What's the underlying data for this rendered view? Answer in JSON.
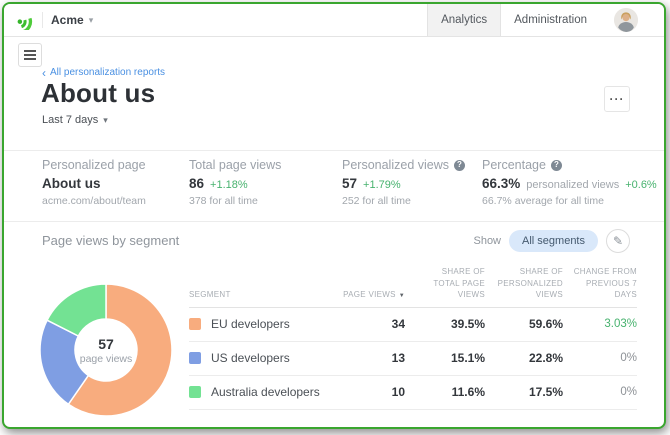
{
  "topbar": {
    "org_name": "Acme",
    "tabs": [
      {
        "label": "Analytics",
        "active": true
      },
      {
        "label": "Administration",
        "active": false
      }
    ]
  },
  "page": {
    "breadcrumb": "All personalization reports",
    "title": "About us",
    "date_range": "Last 7 days"
  },
  "icons": {
    "caret_down": "▾",
    "back_chevron": "‹",
    "ellipsis": "···",
    "help": "?",
    "pencil": "✎",
    "sort_desc": "▼"
  },
  "stats": [
    {
      "label": "Personalized page",
      "value": "About us",
      "sub": "acme.com/about/team"
    },
    {
      "label": "Total page views",
      "value": "86",
      "delta": "+1.18%",
      "sub": "378 for all time"
    },
    {
      "label": "Personalized views",
      "value": "57",
      "delta": "+1.79%",
      "sub": "252 for all time"
    },
    {
      "label": "Percentage",
      "value": "66.3%",
      "suffix": "personalized views",
      "delta": "+0.6%",
      "sub": "66.7% average for all time"
    }
  ],
  "segment_section": {
    "title": "Page views by segment",
    "show_label": "Show",
    "filter_value": "All segments"
  },
  "table": {
    "headers": [
      {
        "lines": [
          "SEGMENT"
        ],
        "align": "left"
      },
      {
        "lines": [
          "PAGE VIEWS"
        ],
        "sort": true
      },
      {
        "lines": [
          "SHARE OF",
          "TOTAL PAGE VIEWS"
        ]
      },
      {
        "lines": [
          "SHARE OF",
          "PERSONALIZED VIEWS"
        ]
      },
      {
        "lines": [
          "CHANGE FROM",
          "PREVIOUS 7 DAYS"
        ]
      }
    ]
  },
  "chart_data": {
    "type": "pie",
    "title": "Page views by segment",
    "center_value": "57",
    "center_label": "page views",
    "total_page_views": 57,
    "series": [
      {
        "name": "EU developers",
        "value": 34,
        "share_total": "39.5%",
        "share_personalized": "59.6%",
        "change": "3.03%",
        "change_positive": true,
        "color": "#f8ac7e"
      },
      {
        "name": "US developers",
        "value": 13,
        "share_total": "15.1%",
        "share_personalized": "22.8%",
        "change": "0%",
        "change_positive": false,
        "color": "#7f9ee3"
      },
      {
        "name": "Australia developers",
        "value": 10,
        "share_total": "11.6%",
        "share_personalized": "17.5%",
        "change": "0%",
        "change_positive": false,
        "color": "#73e293"
      }
    ],
    "legend_position": "table-right"
  },
  "colors": {
    "positive": "#47b26e",
    "link": "#4a90e2",
    "brand_green": "#3aa62f"
  }
}
